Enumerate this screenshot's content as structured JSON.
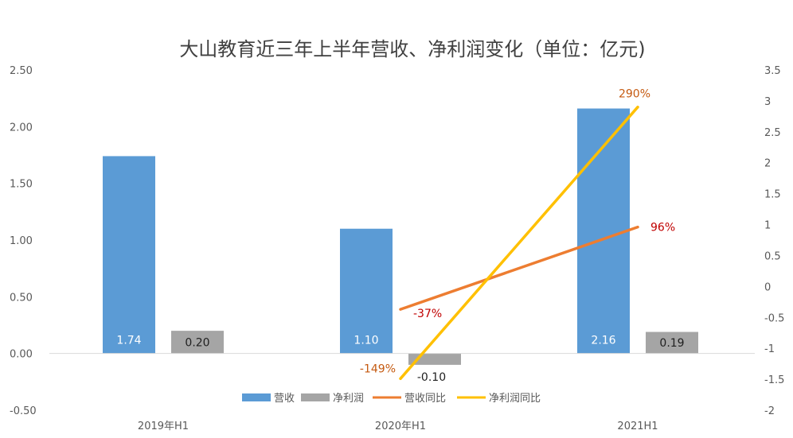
{
  "chart_data": {
    "type": "bar",
    "title": "大山教育近三年上半年营收、净利润变化（单位：亿元)",
    "categories": [
      "2019年H1",
      "2020年H1",
      "2021H1"
    ],
    "y_left": {
      "ylim": [
        -0.5,
        2.5
      ],
      "ticks": [
        "2.50",
        "2.00",
        "1.50",
        "1.00",
        "0.50",
        "0.00",
        "-0.50"
      ],
      "tick_values": [
        2.5,
        2.0,
        1.5,
        1.0,
        0.5,
        0.0,
        -0.5
      ]
    },
    "y_right": {
      "ylim": [
        -2,
        3.5
      ],
      "ticks": [
        "3.5",
        "3",
        "2.5",
        "2",
        "1.5",
        "1",
        "0.5",
        "0",
        "-0.5",
        "-1",
        "-1.5",
        "-2"
      ],
      "tick_values": [
        3.5,
        3,
        2.5,
        2,
        1.5,
        1,
        0.5,
        0,
        -0.5,
        -1,
        -1.5,
        -2
      ]
    },
    "bar_series": [
      {
        "name": "营收",
        "color": "#5b9bd5",
        "values": [
          1.74,
          1.1,
          2.16
        ],
        "labels": [
          "1.74",
          "1.10",
          "2.16"
        ]
      },
      {
        "name": "净利润",
        "color": "#a5a5a5",
        "values": [
          0.2,
          -0.1,
          0.19
        ],
        "labels": [
          "0.20",
          "-0.10",
          "0.19"
        ]
      }
    ],
    "line_series": [
      {
        "name": "营收同比",
        "color": "#ed7d31",
        "axis": "right",
        "categories_index": [
          1,
          2
        ],
        "values": [
          -0.37,
          0.96
        ],
        "labels": [
          "-37%",
          "96%"
        ],
        "label_color": "#c00000"
      },
      {
        "name": "净利润同比",
        "color": "#ffc000",
        "axis": "right",
        "categories_index": [
          1,
          2
        ],
        "values": [
          -1.49,
          2.9
        ],
        "labels": [
          "-149%",
          "290%"
        ],
        "label_color": "#c55a11"
      }
    ],
    "legend": {
      "position": "bottom",
      "items": [
        "营收",
        "净利润",
        "营收同比",
        "净利润同比"
      ]
    },
    "grid": false
  }
}
